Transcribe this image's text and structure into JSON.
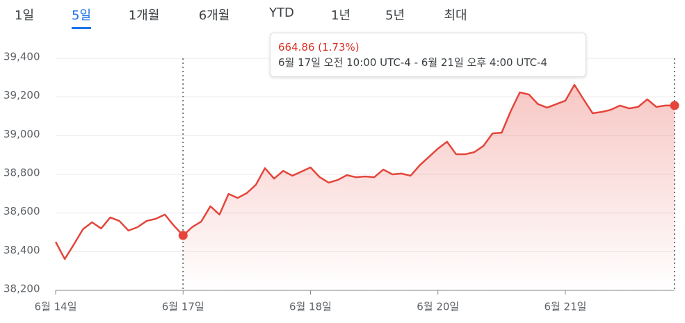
{
  "tabs": [
    "1일",
    "5일",
    "1개월",
    "6개월",
    "YTD",
    "1년",
    "5년",
    "최대"
  ],
  "active_tab": 1,
  "tooltip": {
    "change": "664.86 (1.73%)",
    "range": "6월 17일 오전 10:00 UTC-4 - 6월 21일 오후 4:00 UTC-4"
  },
  "chart_data": {
    "type": "line",
    "color": "#e5453b",
    "x": [
      0,
      1,
      2,
      3,
      4,
      5,
      6,
      7,
      8,
      9,
      10,
      11,
      12,
      13,
      14,
      15,
      16,
      17,
      18,
      19,
      20,
      21,
      22,
      23,
      24,
      25,
      26,
      27,
      28,
      29,
      30,
      31,
      32,
      33,
      34,
      35,
      36,
      37,
      38,
      39,
      40,
      41,
      42,
      43,
      44,
      45,
      46,
      47,
      48,
      49,
      50,
      51,
      52,
      53,
      54,
      55,
      56,
      57,
      58,
      59,
      60,
      61,
      62,
      63,
      64,
      65,
      66,
      67,
      68
    ],
    "values": [
      38451,
      38362,
      38437,
      38516,
      38552,
      38520,
      38577,
      38559,
      38509,
      38527,
      38559,
      38570,
      38592,
      38534,
      38484,
      38527,
      38556,
      38635,
      38592,
      38699,
      38678,
      38703,
      38746,
      38832,
      38778,
      38818,
      38793,
      38814,
      38836,
      38786,
      38757,
      38771,
      38796,
      38785,
      38789,
      38785,
      38825,
      38800,
      38804,
      38793,
      38847,
      38890,
      38933,
      38969,
      38904,
      38904,
      38915,
      38947,
      39012,
      39015,
      39127,
      39224,
      39213,
      39163,
      39145,
      39163,
      39181,
      39263,
      39188,
      39116,
      39123,
      39134,
      39156,
      39141,
      39149,
      39188,
      39149,
      39156,
      39156
    ],
    "xlim": [
      0,
      68
    ],
    "xticks": [
      {
        "value": 0,
        "label": "6월 14일"
      },
      {
        "value": 14,
        "label": "6월 17일"
      },
      {
        "value": 28,
        "label": "6월 18일"
      },
      {
        "value": 42,
        "label": "6월 20일"
      },
      {
        "value": 56,
        "label": "6월 21일"
      }
    ],
    "ylim": [
      38200,
      39400
    ],
    "yticks": [
      {
        "value": 38200,
        "label": "38,200"
      },
      {
        "value": 38400,
        "label": "38,400"
      },
      {
        "value": 38600,
        "label": "38,600"
      },
      {
        "value": 38800,
        "label": "38,800"
      },
      {
        "value": 39000,
        "label": "39,000"
      },
      {
        "value": 39200,
        "label": "39,200"
      },
      {
        "value": 39400,
        "label": "39,400"
      }
    ],
    "grid": true,
    "range_markers": [
      14,
      68
    ]
  }
}
